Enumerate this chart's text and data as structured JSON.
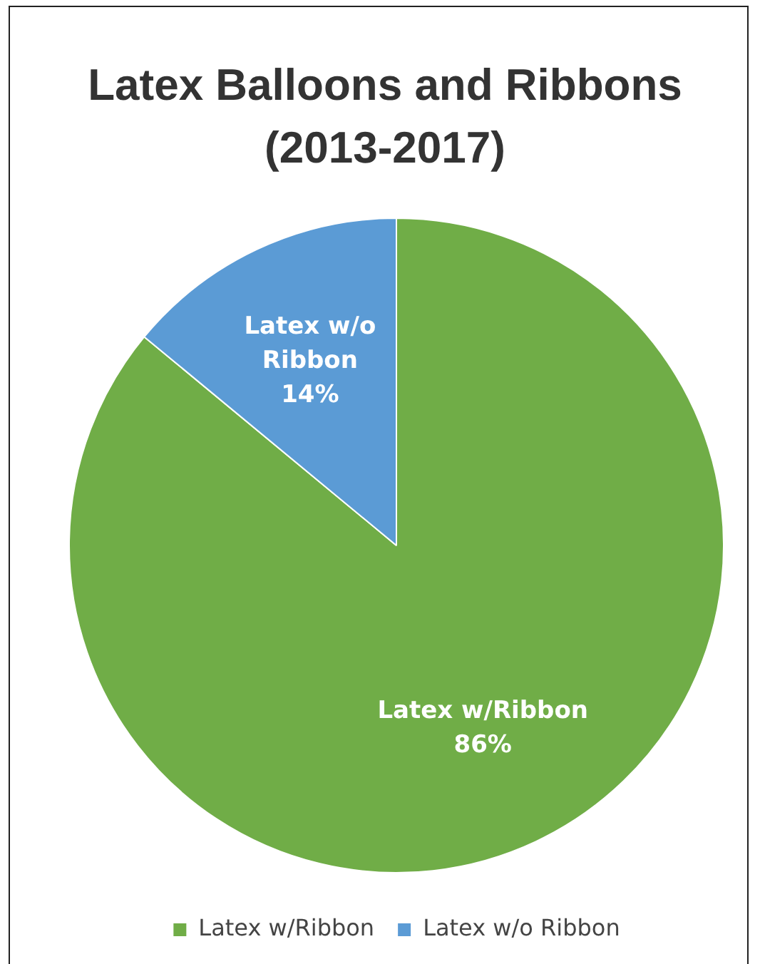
{
  "chart_data": {
    "type": "pie",
    "title": "Latex Balloons and Ribbons (2013-2017)",
    "categories": [
      "Latex w/Ribbon",
      "Latex w/o Ribbon"
    ],
    "values": [
      86,
      14
    ],
    "colors": [
      "#70ad47",
      "#5b9bd5"
    ],
    "value_labels": [
      "86%",
      "14%"
    ],
    "legend": "bottom"
  }
}
